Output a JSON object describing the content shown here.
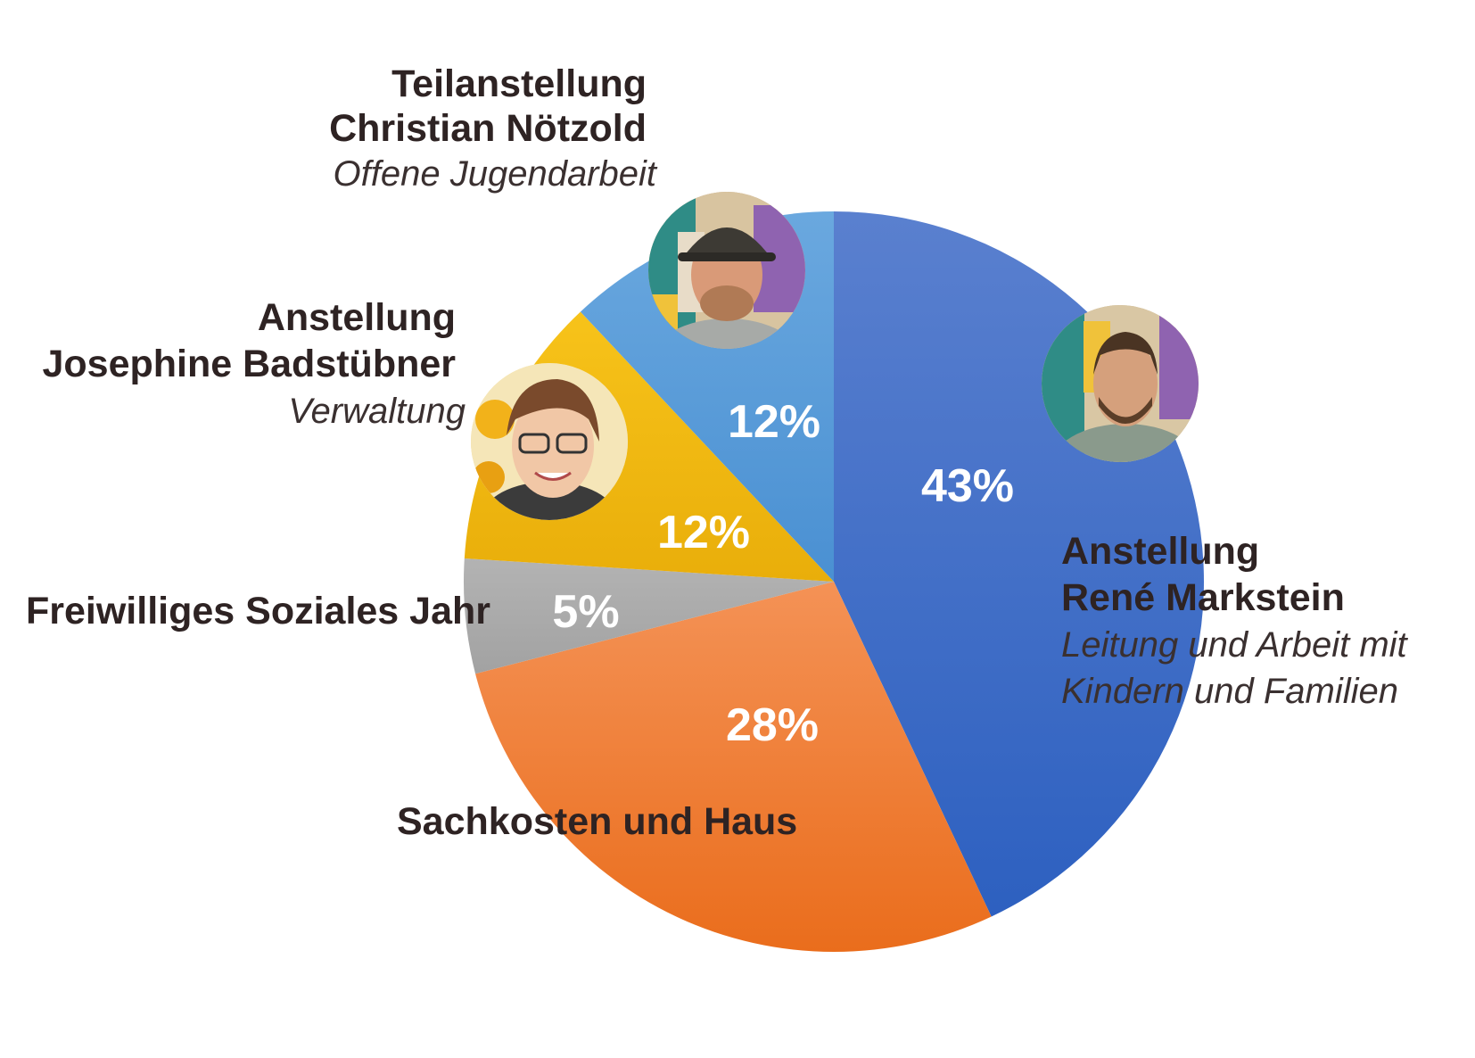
{
  "chart_data": {
    "type": "pie",
    "title": "",
    "slices": [
      {
        "id": "rene",
        "title": "Anstellung",
        "name": "René Markstein",
        "subtitle": "Leitung und Arbeit mit Kindern und Familien",
        "subtitle_lines": [
          "Leitung und Arbeit mit",
          "Kindern und Familien"
        ],
        "value": 43,
        "label": "43%",
        "color_top": "#5a80cf",
        "color_bottom": "#2d60c0"
      },
      {
        "id": "sachkosten",
        "title": "Sachkosten und Haus",
        "value": 28,
        "label": "28%",
        "color_top": "#f49256",
        "color_bottom": "#ea6d1c"
      },
      {
        "id": "fsj",
        "title": "Freiwilliges Soziales Jahr",
        "value": 5,
        "label": "5%",
        "color_top": "#b3b3b3",
        "color_bottom": "#a2a2a2"
      },
      {
        "id": "josephine",
        "title": "Anstellung",
        "name": "Josephine Badstübner",
        "subtitle": "Verwaltung",
        "value": 12,
        "label": "12%",
        "color_top": "#f7c31a",
        "color_bottom": "#e9ae0a"
      },
      {
        "id": "christian",
        "title": "Teilanstellung",
        "name": "Christian Nötzold",
        "subtitle": "Offene Jugendarbeit",
        "value": 12,
        "label": "12%",
        "color_top": "#6aa8df",
        "color_bottom": "#4a90d2"
      }
    ]
  }
}
